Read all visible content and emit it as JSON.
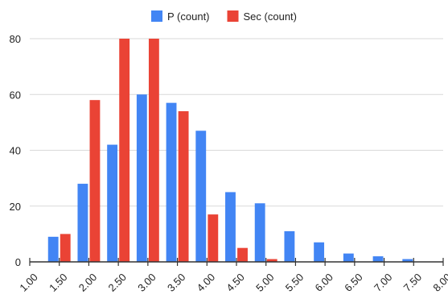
{
  "chart_data": {
    "type": "bar",
    "x": [
      1.5,
      2.0,
      2.5,
      3.0,
      3.5,
      4.0,
      4.5,
      5.0,
      5.5,
      6.0,
      6.5,
      7.0,
      7.5
    ],
    "series": [
      {
        "name": "P (count)",
        "color": "#4285f4",
        "values": [
          9,
          28,
          42,
          60,
          57,
          47,
          25,
          21,
          11,
          7,
          3,
          2,
          1
        ]
      },
      {
        "name": "Sec  (count)",
        "color": "#ea4335",
        "values": [
          10,
          58,
          80,
          80,
          54,
          17,
          5,
          1,
          0,
          0,
          0,
          0,
          0
        ]
      }
    ],
    "x_tick_labels": [
      "1.00",
      "1.50",
      "2.00",
      "2.50",
      "3.00",
      "3.50",
      "4.00",
      "4.50",
      "5.00",
      "5.50",
      "6.00",
      "6.50",
      "7.00",
      "7.50",
      "8.00"
    ],
    "y_tick_labels": [
      "0",
      "20",
      "40",
      "60",
      "80"
    ],
    "xlim": [
      1.0,
      8.0
    ],
    "ylim": [
      0,
      80
    ],
    "grid": true,
    "legend_position": "top-center",
    "title": "",
    "xlabel": "",
    "ylabel": ""
  }
}
